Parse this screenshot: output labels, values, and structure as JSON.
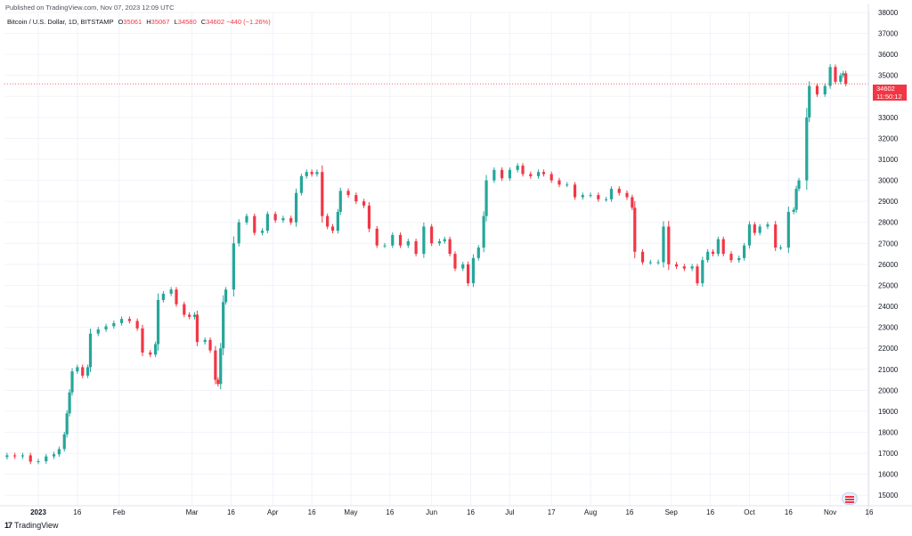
{
  "published_text": "Published on TradingView.com, Nov 07, 2023 12:09 UTC",
  "legend": {
    "symbol": "Bitcoin / U.S. Dollar, 1D, BITSTAMP",
    "o_label": "O",
    "o_value": "35061",
    "h_label": "H",
    "h_value": "35067",
    "l_label": "L",
    "l_value": "34580",
    "c_label": "C",
    "c_value": "34602",
    "change": "−440 (−1.26%)"
  },
  "price_tag": {
    "price": "34602",
    "countdown": "11:50:12"
  },
  "footer": {
    "logo": "17",
    "brand": "TradingView"
  },
  "colors": {
    "up": "#26a69a",
    "down": "#f23645",
    "grid": "#f0f3fa",
    "axis_text": "#131722"
  },
  "chart_data": {
    "type": "candlestick",
    "title": "Bitcoin / U.S. Dollar, 1D, BITSTAMP",
    "ylim": [
      14500,
      38000
    ],
    "y_ticks": [
      15000,
      16000,
      17000,
      18000,
      19000,
      20000,
      21000,
      22000,
      23000,
      24000,
      25000,
      26000,
      27000,
      28000,
      29000,
      30000,
      31000,
      32000,
      33000,
      34000,
      35000,
      36000,
      37000,
      38000
    ],
    "x_ticks": [
      {
        "date": "2023-01-01",
        "label": "2023"
      },
      {
        "date": "2023-01-16",
        "label": "16"
      },
      {
        "date": "2023-02-01",
        "label": "Feb"
      },
      {
        "date": "2023-03-01",
        "label": "Mar"
      },
      {
        "date": "2023-03-16",
        "label": "16"
      },
      {
        "date": "2023-04-01",
        "label": "Apr"
      },
      {
        "date": "2023-04-16",
        "label": "16"
      },
      {
        "date": "2023-05-01",
        "label": "May"
      },
      {
        "date": "2023-05-16",
        "label": "16"
      },
      {
        "date": "2023-06-01",
        "label": "Jun"
      },
      {
        "date": "2023-06-16",
        "label": "16"
      },
      {
        "date": "2023-07-01",
        "label": "Jul"
      },
      {
        "date": "2023-07-17",
        "label": "17"
      },
      {
        "date": "2023-08-01",
        "label": "Aug"
      },
      {
        "date": "2023-08-16",
        "label": "16"
      },
      {
        "date": "2023-09-01",
        "label": "Sep"
      },
      {
        "date": "2023-09-16",
        "label": "16"
      },
      {
        "date": "2023-10-01",
        "label": "Oct"
      },
      {
        "date": "2023-10-16",
        "label": "16"
      },
      {
        "date": "2023-11-01",
        "label": "Nov"
      },
      {
        "date": "2023-11-16",
        "label": "16"
      }
    ],
    "last_price": 34602,
    "closes": [
      {
        "date": "2022-12-20",
        "close": 16900
      },
      {
        "date": "2022-12-23",
        "close": 16850
      },
      {
        "date": "2022-12-26",
        "close": 16900
      },
      {
        "date": "2022-12-29",
        "close": 16600
      },
      {
        "date": "2023-01-01",
        "close": 16620
      },
      {
        "date": "2023-01-04",
        "close": 16850
      },
      {
        "date": "2023-01-07",
        "close": 16950
      },
      {
        "date": "2023-01-09",
        "close": 17200
      },
      {
        "date": "2023-01-11",
        "close": 17900
      },
      {
        "date": "2023-01-12",
        "close": 18900
      },
      {
        "date": "2023-01-13",
        "close": 19900
      },
      {
        "date": "2023-01-14",
        "close": 20900
      },
      {
        "date": "2023-01-16",
        "close": 21100
      },
      {
        "date": "2023-01-18",
        "close": 20700
      },
      {
        "date": "2023-01-20",
        "close": 21100
      },
      {
        "date": "2023-01-21",
        "close": 22700
      },
      {
        "date": "2023-01-24",
        "close": 22900
      },
      {
        "date": "2023-01-27",
        "close": 23050
      },
      {
        "date": "2023-01-30",
        "close": 23200
      },
      {
        "date": "2023-02-02",
        "close": 23400
      },
      {
        "date": "2023-02-05",
        "close": 23300
      },
      {
        "date": "2023-02-08",
        "close": 22950
      },
      {
        "date": "2023-02-10",
        "close": 21800
      },
      {
        "date": "2023-02-13",
        "close": 21700
      },
      {
        "date": "2023-02-15",
        "close": 22200
      },
      {
        "date": "2023-02-16",
        "close": 24300
      },
      {
        "date": "2023-02-18",
        "close": 24600
      },
      {
        "date": "2023-02-21",
        "close": 24800
      },
      {
        "date": "2023-02-23",
        "close": 24100
      },
      {
        "date": "2023-02-26",
        "close": 23600
      },
      {
        "date": "2023-02-28",
        "close": 23500
      },
      {
        "date": "2023-03-02",
        "close": 23600
      },
      {
        "date": "2023-03-03",
        "close": 22300
      },
      {
        "date": "2023-03-06",
        "close": 22400
      },
      {
        "date": "2023-03-08",
        "close": 21900
      },
      {
        "date": "2023-03-10",
        "close": 20500
      },
      {
        "date": "2023-03-11",
        "close": 20300
      },
      {
        "date": "2023-03-12",
        "close": 22000
      },
      {
        "date": "2023-03-13",
        "close": 24200
      },
      {
        "date": "2023-03-14",
        "close": 24800
      },
      {
        "date": "2023-03-17",
        "close": 27000
      },
      {
        "date": "2023-03-19",
        "close": 28000
      },
      {
        "date": "2023-03-22",
        "close": 28300
      },
      {
        "date": "2023-03-25",
        "close": 27500
      },
      {
        "date": "2023-03-28",
        "close": 27600
      },
      {
        "date": "2023-03-30",
        "close": 28400
      },
      {
        "date": "2023-04-02",
        "close": 28100
      },
      {
        "date": "2023-04-05",
        "close": 28200
      },
      {
        "date": "2023-04-08",
        "close": 28000
      },
      {
        "date": "2023-04-10",
        "close": 29400
      },
      {
        "date": "2023-04-12",
        "close": 30200
      },
      {
        "date": "2023-04-14",
        "close": 30400
      },
      {
        "date": "2023-04-16",
        "close": 30300
      },
      {
        "date": "2023-04-18",
        "close": 30400
      },
      {
        "date": "2023-04-20",
        "close": 28300
      },
      {
        "date": "2023-04-22",
        "close": 27800
      },
      {
        "date": "2023-04-24",
        "close": 27600
      },
      {
        "date": "2023-04-26",
        "close": 28500
      },
      {
        "date": "2023-04-27",
        "close": 29500
      },
      {
        "date": "2023-04-30",
        "close": 29300
      },
      {
        "date": "2023-05-03",
        "close": 29000
      },
      {
        "date": "2023-05-06",
        "close": 28800
      },
      {
        "date": "2023-05-08",
        "close": 27700
      },
      {
        "date": "2023-05-11",
        "close": 26900
      },
      {
        "date": "2023-05-14",
        "close": 26900
      },
      {
        "date": "2023-05-17",
        "close": 27400
      },
      {
        "date": "2023-05-20",
        "close": 26900
      },
      {
        "date": "2023-05-23",
        "close": 27100
      },
      {
        "date": "2023-05-26",
        "close": 26500
      },
      {
        "date": "2023-05-29",
        "close": 27800
      },
      {
        "date": "2023-06-01",
        "close": 27000
      },
      {
        "date": "2023-06-04",
        "close": 27100
      },
      {
        "date": "2023-06-06",
        "close": 27200
      },
      {
        "date": "2023-06-08",
        "close": 26500
      },
      {
        "date": "2023-06-10",
        "close": 25800
      },
      {
        "date": "2023-06-13",
        "close": 26000
      },
      {
        "date": "2023-06-15",
        "close": 25100
      },
      {
        "date": "2023-06-17",
        "close": 26300
      },
      {
        "date": "2023-06-19",
        "close": 26800
      },
      {
        "date": "2023-06-21",
        "close": 28300
      },
      {
        "date": "2023-06-22",
        "close": 30000
      },
      {
        "date": "2023-06-25",
        "close": 30500
      },
      {
        "date": "2023-06-28",
        "close": 30100
      },
      {
        "date": "2023-07-01",
        "close": 30500
      },
      {
        "date": "2023-07-04",
        "close": 30700
      },
      {
        "date": "2023-07-06",
        "close": 30300
      },
      {
        "date": "2023-07-09",
        "close": 30200
      },
      {
        "date": "2023-07-12",
        "close": 30400
      },
      {
        "date": "2023-07-14",
        "close": 30300
      },
      {
        "date": "2023-07-17",
        "close": 30000
      },
      {
        "date": "2023-07-20",
        "close": 29800
      },
      {
        "date": "2023-07-23",
        "close": 29800
      },
      {
        "date": "2023-07-26",
        "close": 29200
      },
      {
        "date": "2023-07-29",
        "close": 29300
      },
      {
        "date": "2023-08-01",
        "close": 29300
      },
      {
        "date": "2023-08-04",
        "close": 29100
      },
      {
        "date": "2023-08-07",
        "close": 29100
      },
      {
        "date": "2023-08-09",
        "close": 29600
      },
      {
        "date": "2023-08-12",
        "close": 29400
      },
      {
        "date": "2023-08-15",
        "close": 29200
      },
      {
        "date": "2023-08-17",
        "close": 28700
      },
      {
        "date": "2023-08-18",
        "close": 26600
      },
      {
        "date": "2023-08-21",
        "close": 26100
      },
      {
        "date": "2023-08-24",
        "close": 26100
      },
      {
        "date": "2023-08-27",
        "close": 26100
      },
      {
        "date": "2023-08-29",
        "close": 27800
      },
      {
        "date": "2023-08-31",
        "close": 26000
      },
      {
        "date": "2023-09-03",
        "close": 25900
      },
      {
        "date": "2023-09-06",
        "close": 25800
      },
      {
        "date": "2023-09-09",
        "close": 25900
      },
      {
        "date": "2023-09-11",
        "close": 25100
      },
      {
        "date": "2023-09-13",
        "close": 26200
      },
      {
        "date": "2023-09-15",
        "close": 26600
      },
      {
        "date": "2023-09-17",
        "close": 26500
      },
      {
        "date": "2023-09-19",
        "close": 27200
      },
      {
        "date": "2023-09-21",
        "close": 26500
      },
      {
        "date": "2023-09-24",
        "close": 26200
      },
      {
        "date": "2023-09-27",
        "close": 26300
      },
      {
        "date": "2023-09-29",
        "close": 26900
      },
      {
        "date": "2023-10-01",
        "close": 27900
      },
      {
        "date": "2023-10-03",
        "close": 27500
      },
      {
        "date": "2023-10-05",
        "close": 27800
      },
      {
        "date": "2023-10-08",
        "close": 27900
      },
      {
        "date": "2023-10-11",
        "close": 26800
      },
      {
        "date": "2023-10-13",
        "close": 26800
      },
      {
        "date": "2023-10-16",
        "close": 28500
      },
      {
        "date": "2023-10-18",
        "close": 28600
      },
      {
        "date": "2023-10-19",
        "close": 29600
      },
      {
        "date": "2023-10-20",
        "close": 30000
      },
      {
        "date": "2023-10-23",
        "close": 33000
      },
      {
        "date": "2023-10-24",
        "close": 34500
      },
      {
        "date": "2023-10-27",
        "close": 34100
      },
      {
        "date": "2023-10-30",
        "close": 34500
      },
      {
        "date": "2023-11-01",
        "close": 35400
      },
      {
        "date": "2023-11-03",
        "close": 34700
      },
      {
        "date": "2023-11-05",
        "close": 35000
      },
      {
        "date": "2023-11-06",
        "close": 35100
      },
      {
        "date": "2023-11-07",
        "close": 34602
      }
    ]
  }
}
